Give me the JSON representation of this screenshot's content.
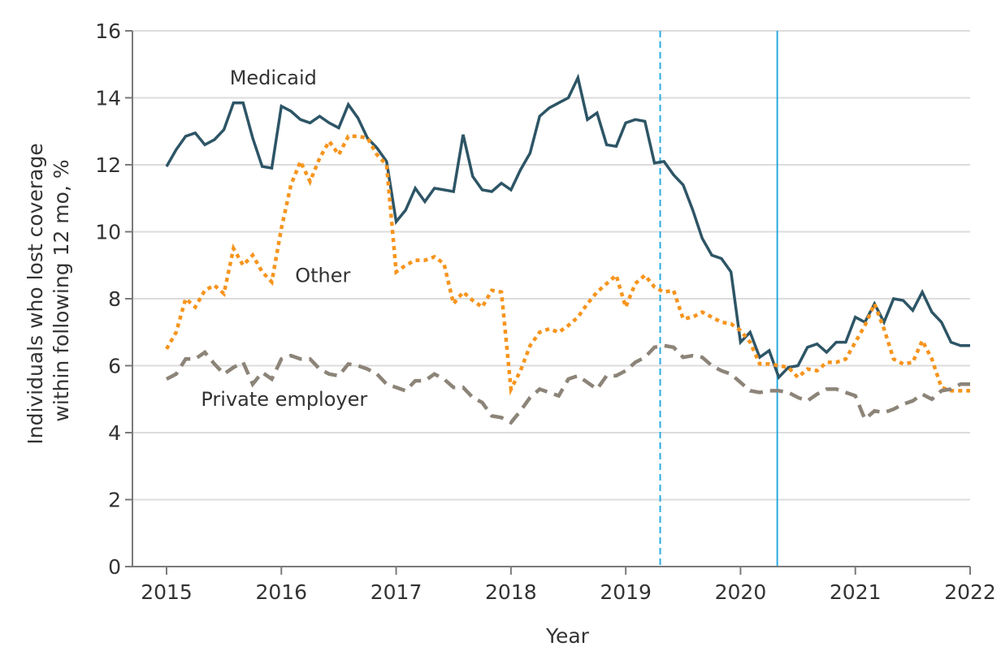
{
  "chart_data": {
    "type": "line",
    "title": "",
    "xlabel": "Year",
    "ylabel_lines": [
      "Individuals who lost coverage",
      "within following 12 mo, %"
    ],
    "ylabel": "Individuals who lost coverage within following 12 mo, %",
    "xlim": [
      2015,
      2022
    ],
    "ylim": [
      0,
      16
    ],
    "x_ticks": [
      2015,
      2016,
      2017,
      2018,
      2019,
      2020,
      2021,
      2022
    ],
    "x_tick_labels": [
      "2015",
      "2016",
      "2017",
      "2018",
      "2019",
      "2020",
      "2021",
      "2022"
    ],
    "y_ticks": [
      0,
      2,
      4,
      6,
      8,
      10,
      12,
      14,
      16
    ],
    "y_tick_labels": [
      "0",
      "2",
      "4",
      "6",
      "8",
      "10",
      "12",
      "14",
      "16"
    ],
    "grid": "horizontal",
    "x_start": 2015,
    "x_step_years": 0.0833333,
    "x_note": "Monthly observations, January 2015 through January 2022",
    "series": [
      {
        "name": "Medicaid",
        "label": "Medicaid",
        "color": "#2d5566",
        "style": "solid",
        "values": [
          11.95,
          12.45,
          12.85,
          12.95,
          12.6,
          12.75,
          13.05,
          13.85,
          13.85,
          12.8,
          11.95,
          11.9,
          13.75,
          13.6,
          13.35,
          13.25,
          13.45,
          13.25,
          13.1,
          13.8,
          13.4,
          12.8,
          12.5,
          12.1,
          10.3,
          10.65,
          11.3,
          10.9,
          11.3,
          11.25,
          11.2,
          12.9,
          11.65,
          11.25,
          11.2,
          11.45,
          11.25,
          11.85,
          12.35,
          13.45,
          13.7,
          13.85,
          14.0,
          14.6,
          13.35,
          13.55,
          12.6,
          12.55,
          13.25,
          13.35,
          13.3,
          12.05,
          12.1,
          11.7,
          11.4,
          10.65,
          9.8,
          9.3,
          9.2,
          8.8,
          6.7,
          7.0,
          6.25,
          6.45,
          5.65,
          5.95,
          6.0,
          6.55,
          6.65,
          6.4,
          6.7,
          6.7,
          7.45,
          7.3,
          7.85,
          7.3,
          8.0,
          7.95,
          7.65,
          8.2,
          7.6,
          7.3,
          6.7,
          6.6,
          6.6
        ]
      },
      {
        "name": "Other",
        "label": "Other",
        "color": "#f7941d",
        "style": "dotted",
        "values": [
          6.5,
          7.0,
          8.0,
          7.75,
          8.25,
          8.4,
          8.15,
          9.5,
          9.0,
          9.3,
          8.8,
          8.5,
          10.1,
          11.4,
          12.1,
          11.5,
          12.2,
          12.7,
          12.3,
          12.85,
          12.85,
          12.8,
          12.3,
          12.0,
          8.8,
          9.0,
          9.15,
          9.15,
          9.25,
          9.05,
          7.85,
          8.2,
          7.95,
          7.75,
          8.25,
          8.2,
          5.3,
          5.85,
          6.6,
          7.0,
          7.1,
          7.0,
          7.2,
          7.45,
          7.85,
          8.2,
          8.45,
          8.7,
          7.75,
          8.45,
          8.7,
          8.35,
          8.2,
          8.25,
          7.4,
          7.45,
          7.6,
          7.45,
          7.3,
          7.25,
          7.05,
          6.7,
          6.05,
          6.05,
          6.0,
          5.95,
          5.65,
          5.9,
          5.85,
          6.1,
          6.1,
          6.2,
          6.7,
          7.2,
          7.85,
          7.1,
          6.2,
          6.05,
          6.1,
          6.75,
          6.2,
          5.35,
          5.25,
          5.25,
          5.25
        ]
      },
      {
        "name": "Private employer",
        "label": "Private employer",
        "color": "#8c8478",
        "style": "dashed",
        "values": [
          5.6,
          5.75,
          6.2,
          6.2,
          6.4,
          6.05,
          5.75,
          5.95,
          6.1,
          5.45,
          5.8,
          5.6,
          6.2,
          6.3,
          6.2,
          6.2,
          5.9,
          5.75,
          5.7,
          6.05,
          6.0,
          5.9,
          5.75,
          5.45,
          5.35,
          5.25,
          5.55,
          5.55,
          5.75,
          5.6,
          5.35,
          5.35,
          5.05,
          4.9,
          4.5,
          4.45,
          4.3,
          4.65,
          5.05,
          5.3,
          5.2,
          5.1,
          5.6,
          5.7,
          5.5,
          5.3,
          5.7,
          5.7,
          5.85,
          6.1,
          6.25,
          6.55,
          6.6,
          6.55,
          6.25,
          6.3,
          6.25,
          6.0,
          5.85,
          5.75,
          5.5,
          5.25,
          5.2,
          5.25,
          5.25,
          5.2,
          5.05,
          4.95,
          5.15,
          5.3,
          5.3,
          5.2,
          5.1,
          4.4,
          4.65,
          4.6,
          4.7,
          4.85,
          4.95,
          5.15,
          5.0,
          5.25,
          5.3,
          5.45,
          5.45
        ]
      }
    ],
    "series_label_anchors": [
      {
        "series": "Medicaid",
        "x": 2015.55,
        "y": 14.4
      },
      {
        "series": "Other",
        "x": 2016.12,
        "y": 8.5
      },
      {
        "series": "Private employer",
        "x": 2015.3,
        "y": 4.8
      }
    ],
    "reference_lines": [
      {
        "name": "dashed-reference",
        "x": 2019.3,
        "color": "#29abe2",
        "style": "dashed"
      },
      {
        "name": "solid-reference",
        "x": 2020.32,
        "color": "#29abe2",
        "style": "solid"
      }
    ]
  }
}
